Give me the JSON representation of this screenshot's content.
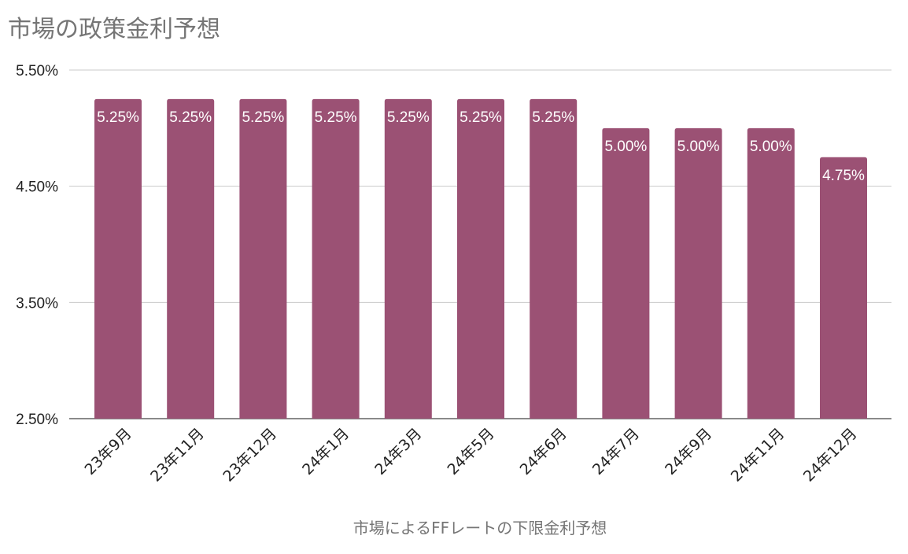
{
  "chart_data": {
    "type": "bar",
    "title": "市場の政策金利予想",
    "xlabel": "市場によるFFレートの下限金利予想",
    "ylabel": "",
    "categories": [
      "23年9月",
      "23年11月",
      "23年12月",
      "24年1月",
      "24年3月",
      "24年5月",
      "24年6月",
      "24年7月",
      "24年9月",
      "24年11月",
      "24年12月"
    ],
    "values": [
      5.25,
      5.25,
      5.25,
      5.25,
      5.25,
      5.25,
      5.25,
      5.0,
      5.0,
      5.0,
      4.75
    ],
    "data_labels": [
      "5.25%",
      "5.25%",
      "5.25%",
      "5.25%",
      "5.25%",
      "5.25%",
      "5.25%",
      "5.00%",
      "5.00%",
      "5.00%",
      "4.75%"
    ],
    "ylim": [
      2.5,
      5.5
    ],
    "yticks": [
      2.5,
      3.5,
      4.5,
      5.5
    ],
    "ytick_labels": [
      "2.50%",
      "3.50%",
      "4.50%",
      "5.50%"
    ],
    "grid": true,
    "legend": "none",
    "bar_color": "#9b5174"
  }
}
